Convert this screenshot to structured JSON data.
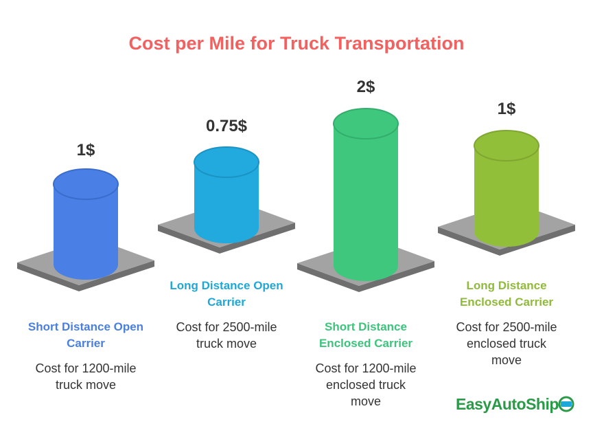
{
  "title": "Cost per Mile for Truck Transportation",
  "items": [
    {
      "price": "1$",
      "label": "Short Distance Open Carrier",
      "description": "Cost for 1200-mile truck move"
    },
    {
      "price": "0.75$",
      "label": "Long Distance Open Carrier",
      "description": "Cost for 2500-mile truck move"
    },
    {
      "price": "2$",
      "label": "Short Distance Enclosed Carrier",
      "description": "Cost for 1200-mile enclosed truck move"
    },
    {
      "price": "1$",
      "label": "Long Distance Enclosed Carrier",
      "description": "Cost for 2500-mile enclosed truck move"
    }
  ],
  "logo": "EasyAutoShip"
}
